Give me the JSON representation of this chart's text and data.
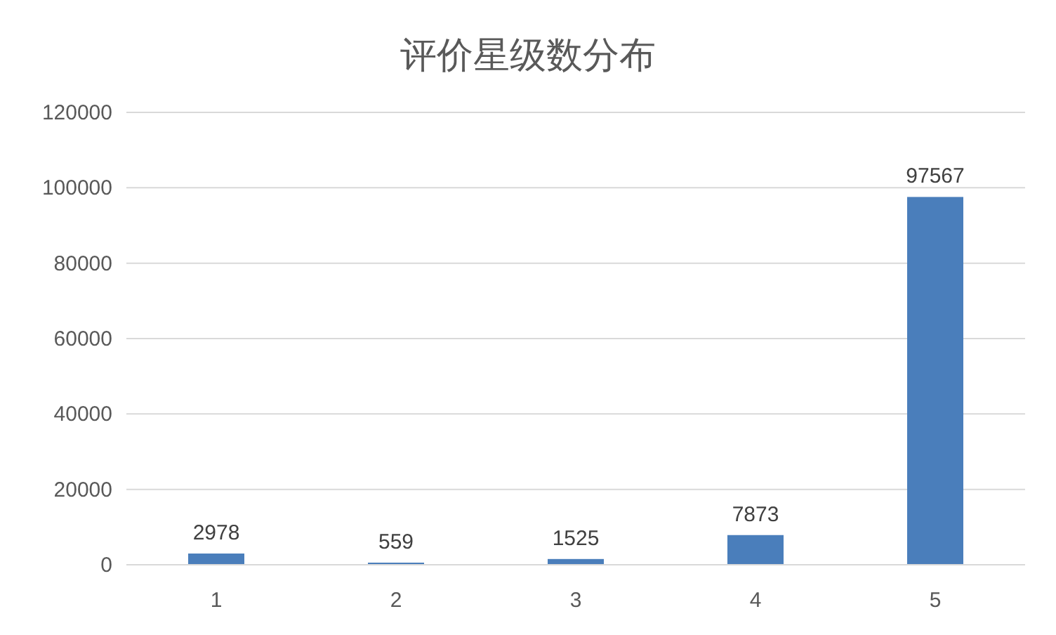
{
  "chart_data": {
    "type": "bar",
    "title": "评价星级数分布",
    "categories": [
      "1",
      "2",
      "3",
      "4",
      "5"
    ],
    "values": [
      2978,
      559,
      1525,
      7873,
      97567
    ],
    "color": "#4a7ebb",
    "ylim": [
      0,
      120000
    ],
    "yticks": [
      0,
      20000,
      40000,
      60000,
      80000,
      100000,
      120000
    ],
    "grid": "y",
    "data_labels": true
  }
}
